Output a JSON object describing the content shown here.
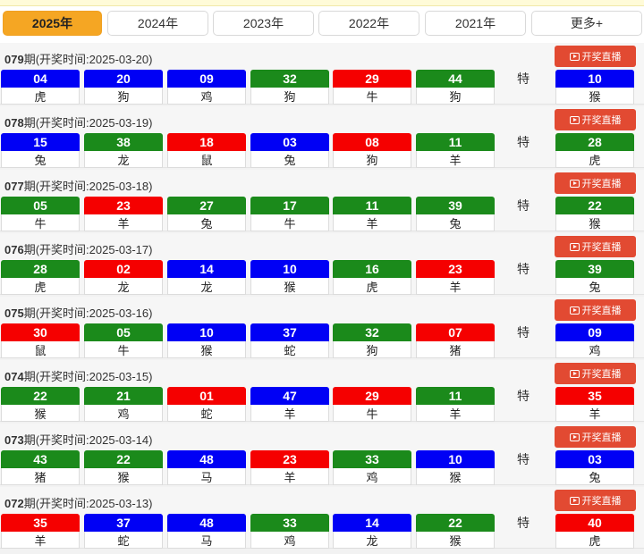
{
  "tabs": [
    {
      "label": "2025年",
      "active": true
    },
    {
      "label": "2024年",
      "active": false
    },
    {
      "label": "2023年",
      "active": false
    },
    {
      "label": "2022年",
      "active": false
    },
    {
      "label": "2021年",
      "active": false
    },
    {
      "label": "更多+",
      "active": false
    }
  ],
  "special_label": "特",
  "live_label": "开奖直播",
  "colors": {
    "blue": "#0000f5",
    "green": "#1b8a1b",
    "red": "#f50000",
    "tab_active": "#f5a623",
    "live": "#e24a32"
  },
  "draws": [
    {
      "issue": "079",
      "issue_suffix": "期(开奖时间:2025-03-20)",
      "balls": [
        {
          "num": "04",
          "zodiac": "虎",
          "color": "blue"
        },
        {
          "num": "20",
          "zodiac": "狗",
          "color": "blue"
        },
        {
          "num": "09",
          "zodiac": "鸡",
          "color": "blue"
        },
        {
          "num": "32",
          "zodiac": "狗",
          "color": "green"
        },
        {
          "num": "29",
          "zodiac": "牛",
          "color": "red"
        },
        {
          "num": "44",
          "zodiac": "狗",
          "color": "green"
        }
      ],
      "special": {
        "num": "10",
        "zodiac": "猴",
        "color": "blue"
      }
    },
    {
      "issue": "078",
      "issue_suffix": "期(开奖时间:2025-03-19)",
      "balls": [
        {
          "num": "15",
          "zodiac": "兔",
          "color": "blue"
        },
        {
          "num": "38",
          "zodiac": "龙",
          "color": "green"
        },
        {
          "num": "18",
          "zodiac": "鼠",
          "color": "red"
        },
        {
          "num": "03",
          "zodiac": "兔",
          "color": "blue"
        },
        {
          "num": "08",
          "zodiac": "狗",
          "color": "red"
        },
        {
          "num": "11",
          "zodiac": "羊",
          "color": "green"
        }
      ],
      "special": {
        "num": "28",
        "zodiac": "虎",
        "color": "green"
      }
    },
    {
      "issue": "077",
      "issue_suffix": "期(开奖时间:2025-03-18)",
      "balls": [
        {
          "num": "05",
          "zodiac": "牛",
          "color": "green"
        },
        {
          "num": "23",
          "zodiac": "羊",
          "color": "red"
        },
        {
          "num": "27",
          "zodiac": "兔",
          "color": "green"
        },
        {
          "num": "17",
          "zodiac": "牛",
          "color": "green"
        },
        {
          "num": "11",
          "zodiac": "羊",
          "color": "green"
        },
        {
          "num": "39",
          "zodiac": "兔",
          "color": "green"
        }
      ],
      "special": {
        "num": "22",
        "zodiac": "猴",
        "color": "green"
      }
    },
    {
      "issue": "076",
      "issue_suffix": "期(开奖时间:2025-03-17)",
      "balls": [
        {
          "num": "28",
          "zodiac": "虎",
          "color": "green"
        },
        {
          "num": "02",
          "zodiac": "龙",
          "color": "red"
        },
        {
          "num": "14",
          "zodiac": "龙",
          "color": "blue"
        },
        {
          "num": "10",
          "zodiac": "猴",
          "color": "blue"
        },
        {
          "num": "16",
          "zodiac": "虎",
          "color": "green"
        },
        {
          "num": "23",
          "zodiac": "羊",
          "color": "red"
        }
      ],
      "special": {
        "num": "39",
        "zodiac": "兔",
        "color": "green"
      }
    },
    {
      "issue": "075",
      "issue_suffix": "期(开奖时间:2025-03-16)",
      "balls": [
        {
          "num": "30",
          "zodiac": "鼠",
          "color": "red"
        },
        {
          "num": "05",
          "zodiac": "牛",
          "color": "green"
        },
        {
          "num": "10",
          "zodiac": "猴",
          "color": "blue"
        },
        {
          "num": "37",
          "zodiac": "蛇",
          "color": "blue"
        },
        {
          "num": "32",
          "zodiac": "狗",
          "color": "green"
        },
        {
          "num": "07",
          "zodiac": "猪",
          "color": "red"
        }
      ],
      "special": {
        "num": "09",
        "zodiac": "鸡",
        "color": "blue"
      }
    },
    {
      "issue": "074",
      "issue_suffix": "期(开奖时间:2025-03-15)",
      "balls": [
        {
          "num": "22",
          "zodiac": "猴",
          "color": "green"
        },
        {
          "num": "21",
          "zodiac": "鸡",
          "color": "green"
        },
        {
          "num": "01",
          "zodiac": "蛇",
          "color": "red"
        },
        {
          "num": "47",
          "zodiac": "羊",
          "color": "blue"
        },
        {
          "num": "29",
          "zodiac": "牛",
          "color": "red"
        },
        {
          "num": "11",
          "zodiac": "羊",
          "color": "green"
        }
      ],
      "special": {
        "num": "35",
        "zodiac": "羊",
        "color": "red"
      }
    },
    {
      "issue": "073",
      "issue_suffix": "期(开奖时间:2025-03-14)",
      "balls": [
        {
          "num": "43",
          "zodiac": "猪",
          "color": "green"
        },
        {
          "num": "22",
          "zodiac": "猴",
          "color": "green"
        },
        {
          "num": "48",
          "zodiac": "马",
          "color": "blue"
        },
        {
          "num": "23",
          "zodiac": "羊",
          "color": "red"
        },
        {
          "num": "33",
          "zodiac": "鸡",
          "color": "green"
        },
        {
          "num": "10",
          "zodiac": "猴",
          "color": "blue"
        }
      ],
      "special": {
        "num": "03",
        "zodiac": "兔",
        "color": "blue"
      }
    },
    {
      "issue": "072",
      "issue_suffix": "期(开奖时间:2025-03-13)",
      "balls": [
        {
          "num": "35",
          "zodiac": "羊",
          "color": "red"
        },
        {
          "num": "37",
          "zodiac": "蛇",
          "color": "blue"
        },
        {
          "num": "48",
          "zodiac": "马",
          "color": "blue"
        },
        {
          "num": "33",
          "zodiac": "鸡",
          "color": "green"
        },
        {
          "num": "14",
          "zodiac": "龙",
          "color": "blue"
        },
        {
          "num": "22",
          "zodiac": "猴",
          "color": "green"
        }
      ],
      "special": {
        "num": "40",
        "zodiac": "虎",
        "color": "red"
      }
    }
  ]
}
